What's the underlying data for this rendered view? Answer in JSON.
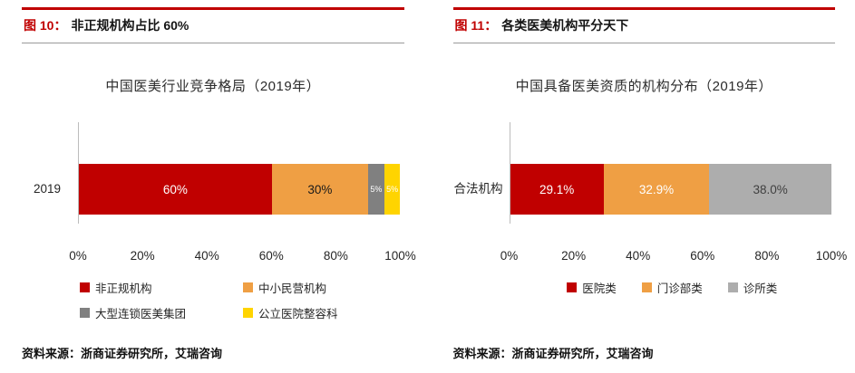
{
  "figures": [
    {
      "caption_prefix": "图 10：",
      "caption": "非正规机构占比 60%",
      "source": "资料来源：浙商证券研究所，艾瑞咨询"
    },
    {
      "caption_prefix": "图 11：",
      "caption": "各类医美机构平分天下",
      "source": "资料来源：浙商证券研究所，艾瑞咨询"
    }
  ],
  "colors": {
    "accent_red": "#C00000",
    "orange": "#EF9F44",
    "dark_gray": "#808080",
    "yellow": "#FFD400",
    "light_gray": "#ADADAD",
    "axis_line": "#BCBCBC"
  },
  "chart_data": [
    {
      "type": "bar",
      "stacked": true,
      "orientation": "horizontal",
      "title": "中国医美行业竞争格局（2019年）",
      "category": "2019",
      "xlim": [
        0,
        100
      ],
      "x_ticks": [
        "0%",
        "20%",
        "40%",
        "60%",
        "80%",
        "100%"
      ],
      "legend_position": "bottom",
      "legend_columns": 2,
      "series": [
        {
          "name": "非正规机构",
          "value": 60,
          "label": "60%",
          "color": "#C00000",
          "label_color": "#FFFFFF"
        },
        {
          "name": "中小民营机构",
          "value": 30,
          "label": "30%",
          "color": "#EF9F44",
          "label_color": "#1A1A1A"
        },
        {
          "name": "大型连锁医美集团",
          "value": 5,
          "label": "5%",
          "color": "#808080",
          "label_color": "#FFFFFF"
        },
        {
          "name": "公立医院整容科",
          "value": 5,
          "label": "5%",
          "color": "#FFD400",
          "label_color": "#FFFFFF"
        }
      ]
    },
    {
      "type": "bar",
      "stacked": true,
      "orientation": "horizontal",
      "title": "中国具备医美资质的机构分布（2019年）",
      "category": "合法机构",
      "xlim": [
        0,
        100
      ],
      "x_ticks": [
        "0%",
        "20%",
        "40%",
        "60%",
        "80%",
        "100%"
      ],
      "legend_position": "bottom",
      "legend_columns": 3,
      "series": [
        {
          "name": "医院类",
          "value": 29.1,
          "label": "29.1%",
          "color": "#C00000",
          "label_color": "#FFFFFF"
        },
        {
          "name": "门诊部类",
          "value": 32.9,
          "label": "32.9%",
          "color": "#EF9F44",
          "label_color": "#FFFFFF"
        },
        {
          "name": "诊所类",
          "value": 38.0,
          "label": "38.0%",
          "color": "#ADADAD",
          "label_color": "#404040"
        }
      ]
    }
  ]
}
